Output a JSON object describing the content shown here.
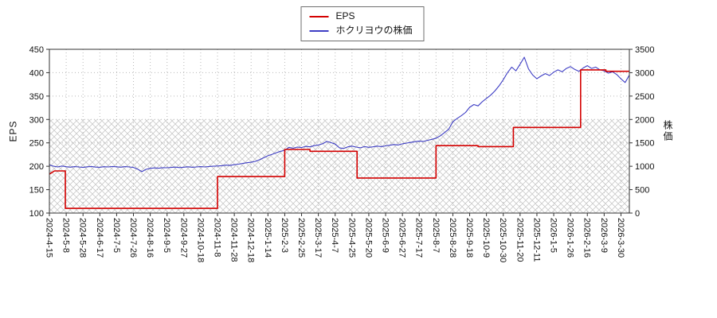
{
  "chart_data": {
    "type": "line",
    "title": "",
    "grid": true,
    "legend_position": "top-center",
    "legend": [
      {
        "label": "EPS",
        "color": "#d40000"
      },
      {
        "label": "ホクリヨウの株価",
        "color": "#3d3dc4"
      }
    ],
    "left_axis": {
      "label": "EPS",
      "min": 100,
      "max": 450,
      "ticks": [
        100,
        150,
        200,
        250,
        300,
        350,
        400,
        450
      ]
    },
    "right_axis": {
      "label": "株価",
      "min": 0,
      "max": 3500,
      "ticks": [
        0,
        500,
        1000,
        1500,
        2000,
        2500,
        3000,
        3500
      ]
    },
    "x_tick_labels": [
      "2024-4-15",
      "2024-5-8",
      "2024-5-28",
      "2024-6-17",
      "2024-7-5",
      "2024-7-26",
      "2024-8-16",
      "2024-9-5",
      "2024-9-27",
      "2024-10-18",
      "2024-11-8",
      "2024-11-28",
      "2024-12-18",
      "2025-1-14",
      "2025-2-3",
      "2025-2-25",
      "2025-3-17",
      "2025-4-7",
      "2025-4-25",
      "2025-5-20",
      "2025-6-9",
      "2025-6-27",
      "2025-7-17",
      "2025-8-7",
      "2025-8-28",
      "2025-9-18",
      "2025-10-9",
      "2025-10-30",
      "2025-11-20",
      "2025-12-11",
      "2026-1-5",
      "2026-1-26",
      "2026-2-16",
      "2026-3-9",
      "2026-3-30"
    ],
    "x_max": 34.5,
    "hatch_region": {
      "from": 100,
      "to": 300,
      "color": "#c9c9c9"
    },
    "series": [
      {
        "name": "ホクリヨウの株価",
        "id": "price-line",
        "axis": "right",
        "color": "#3d3dc4",
        "width": 1.1,
        "x_start": 0,
        "x_step": 0.25,
        "values": [
          1030,
          1000,
          985,
          1005,
          990,
          980,
          992,
          985,
          975,
          988,
          995,
          982,
          978,
          990,
          985,
          995,
          988,
          980,
          992,
          985,
          975,
          940,
          885,
          935,
          955,
          965,
          958,
          970,
          968,
          975,
          982,
          972,
          980,
          988,
          978,
          985,
          992,
          985,
          995,
          1000,
          1005,
          1012,
          1025,
          1018,
          1035,
          1045,
          1060,
          1075,
          1085,
          1105,
          1140,
          1180,
          1225,
          1255,
          1290,
          1320,
          1340,
          1405,
          1385,
          1410,
          1400,
          1425,
          1415,
          1440,
          1455,
          1480,
          1530,
          1505,
          1475,
          1395,
          1380,
          1415,
          1430,
          1410,
          1395,
          1420,
          1405,
          1415,
          1430,
          1420,
          1435,
          1450,
          1465,
          1455,
          1480,
          1495,
          1510,
          1525,
          1540,
          1530,
          1555,
          1575,
          1600,
          1650,
          1720,
          1790,
          1950,
          2020,
          2080,
          2150,
          2260,
          2320,
          2290,
          2380,
          2450,
          2520,
          2610,
          2720,
          2850,
          3000,
          3120,
          3040,
          3180,
          3330,
          3080,
          2950,
          2870,
          2930,
          2980,
          2940,
          3010,
          3060,
          3020,
          3090,
          3130,
          3070,
          3030,
          3100,
          3150,
          3090,
          3120,
          3060,
          3040,
          2990,
          3020,
          2960,
          2870,
          2790,
          2950
        ]
      },
      {
        "name": "EPS",
        "id": "eps-line",
        "axis": "left",
        "color": "#d40000",
        "width": 1.6,
        "points": [
          [
            0,
            183
          ],
          [
            0.3,
            190
          ],
          [
            0.95,
            190
          ],
          [
            0.95,
            110
          ],
          [
            10,
            110
          ],
          [
            10,
            178
          ],
          [
            14,
            178
          ],
          [
            14,
            236
          ],
          [
            15.5,
            236
          ],
          [
            15.5,
            232
          ],
          [
            18.3,
            232
          ],
          [
            18.3,
            175
          ],
          [
            23,
            175
          ],
          [
            23,
            244
          ],
          [
            25.5,
            244
          ],
          [
            25.5,
            242
          ],
          [
            27.6,
            242
          ],
          [
            27.6,
            283
          ],
          [
            31.6,
            283
          ],
          [
            31.6,
            406
          ],
          [
            33.1,
            406
          ],
          [
            33.1,
            403
          ],
          [
            34.5,
            403
          ]
        ]
      }
    ]
  }
}
